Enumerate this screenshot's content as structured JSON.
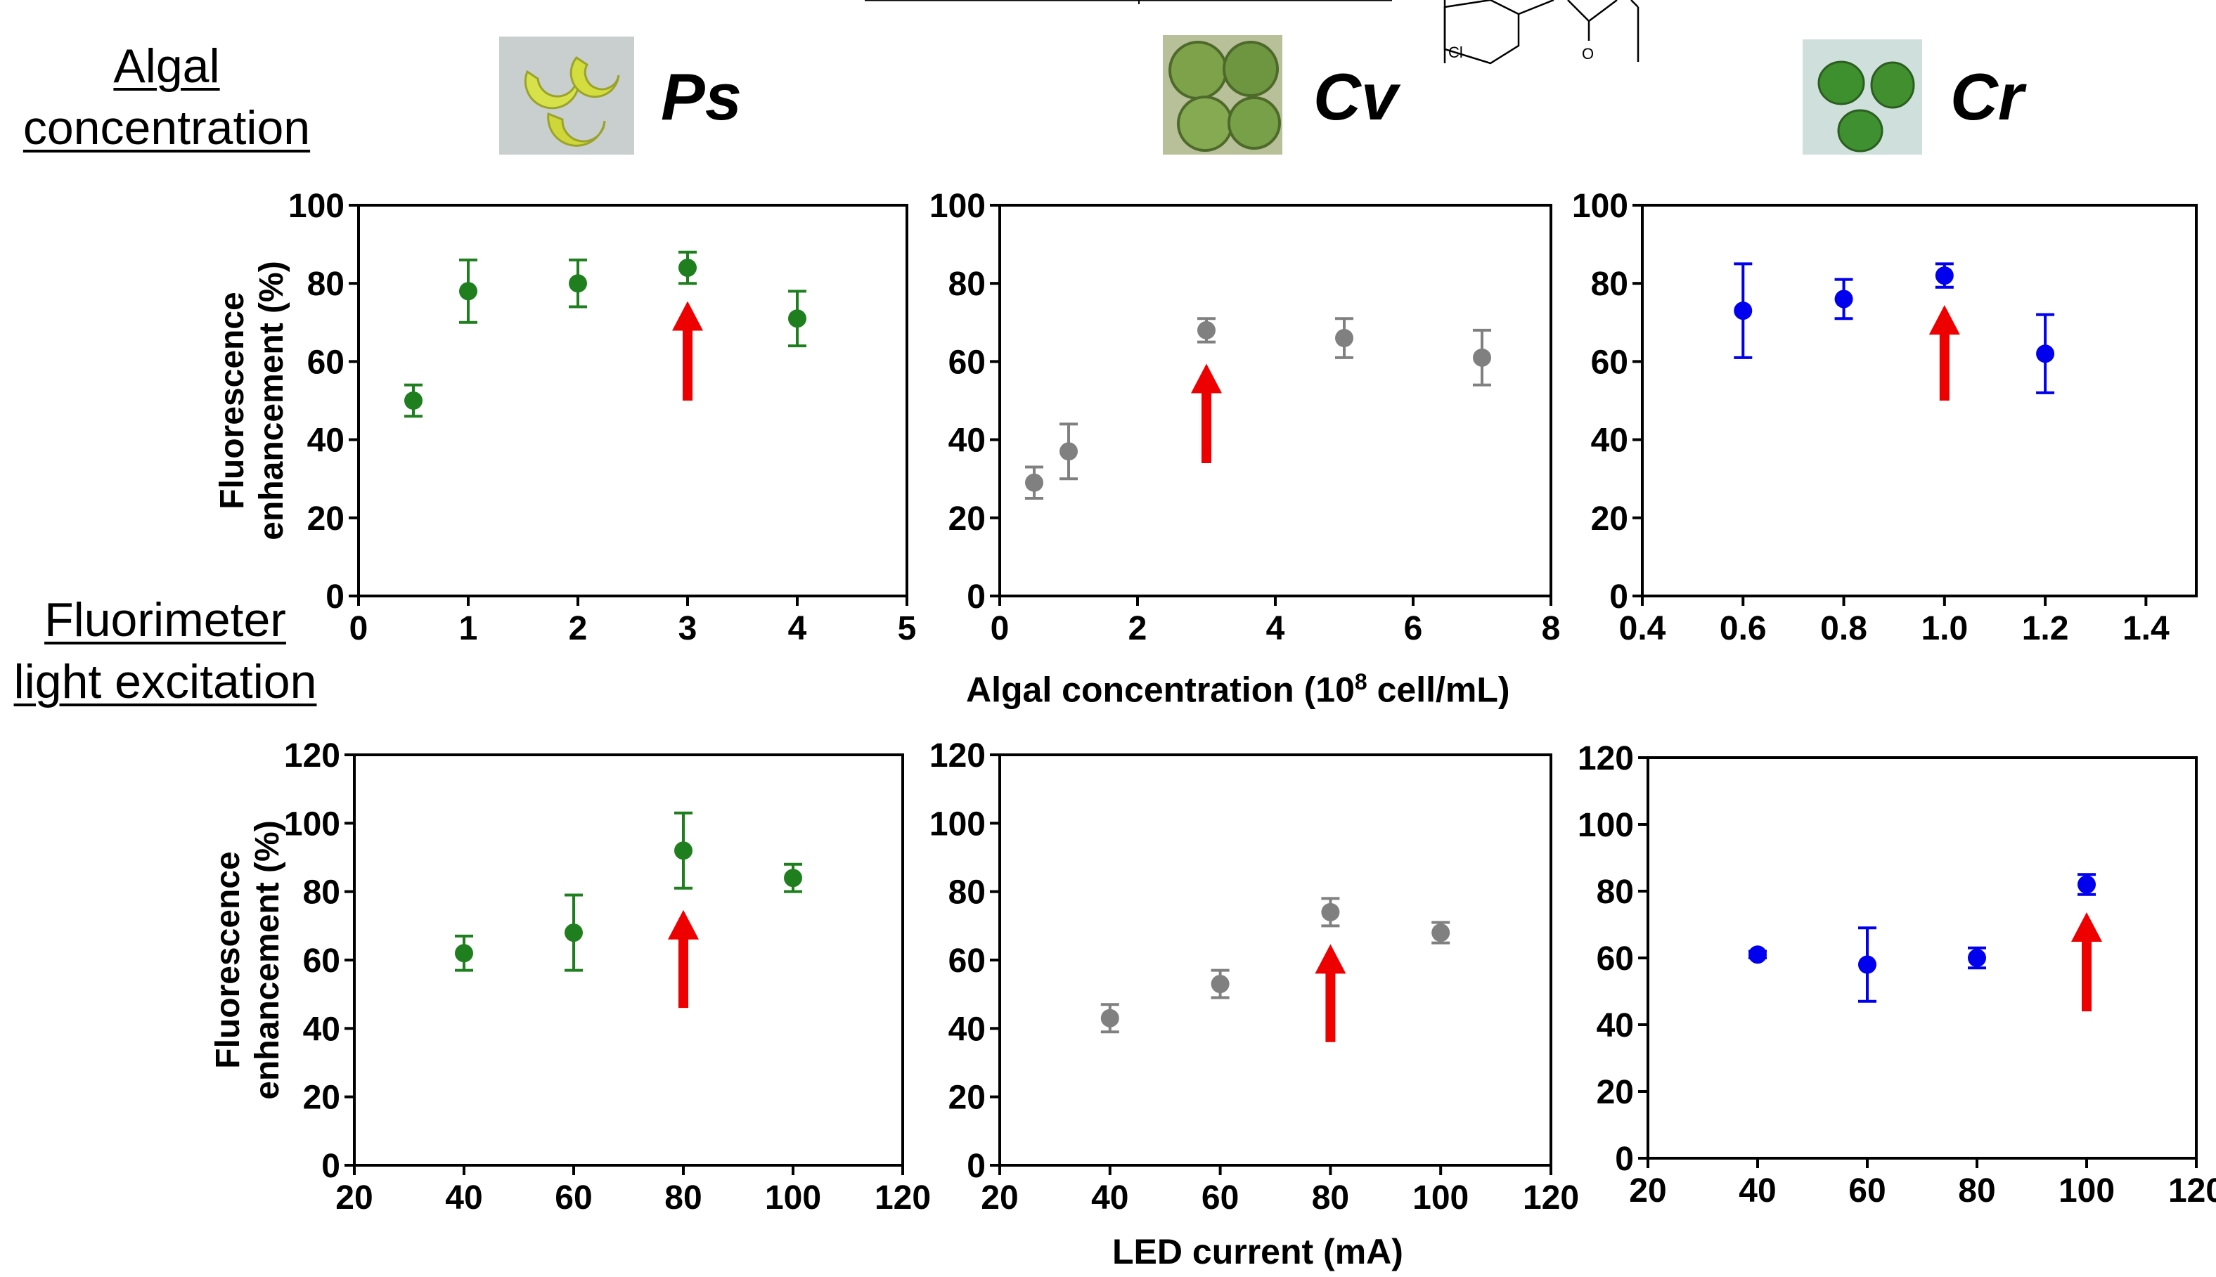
{
  "row_labels": {
    "algal_line1": "Algal",
    "algal_line2": "concentration",
    "fluor_line1": "Fluorimeter",
    "fluor_line2": "light excitation"
  },
  "species": [
    {
      "name": "Ps",
      "icon": "crescent-algae-cells-photo"
    },
    {
      "name": "Cv",
      "icon": "spherical-algae-cells-photo"
    },
    {
      "name": "Cr",
      "icon": "oval-algae-cells-photo"
    }
  ],
  "colors": {
    "Ps": "#1f7f1f",
    "Cv": "#808080",
    "Cr": "#0000ee",
    "arrow": "#ee0000"
  },
  "shared_xlabels": {
    "top": "Algal concentration (10",
    "top_sup": "8",
    "top_end": " cell/mL)",
    "bottom": "LED current (mA)"
  },
  "ylabel_line1": "Fluorescence",
  "ylabel_line2": "enhancement (%)",
  "chart_data": [
    {
      "type": "scatter",
      "name": "Ps-algal-concentration",
      "xlim": [
        0,
        5
      ],
      "xticks": [
        "0",
        "1",
        "2",
        "3",
        "4",
        "5"
      ],
      "ylim": [
        0,
        100
      ],
      "yticks": [
        "0",
        "20",
        "40",
        "60",
        "80",
        "100"
      ],
      "ylabel": "Fluorescence enhancement (%)",
      "points": [
        {
          "x": 0.5,
          "y": 50,
          "err": 4
        },
        {
          "x": 1,
          "y": 78,
          "err": 8
        },
        {
          "x": 2,
          "y": 80,
          "err": 6
        },
        {
          "x": 3,
          "y": 84,
          "err": 4
        },
        {
          "x": 4,
          "y": 71,
          "err": 7
        }
      ],
      "color": "#1f7f1f",
      "arrow": {
        "x": 3,
        "y_from": 50,
        "y_to": 74
      }
    },
    {
      "type": "scatter",
      "name": "Cv-algal-concentration",
      "xlim": [
        0,
        8
      ],
      "xticks": [
        "0",
        "2",
        "4",
        "6",
        "8"
      ],
      "ylim": [
        0,
        100
      ],
      "yticks": [
        "0",
        "20",
        "40",
        "60",
        "80",
        "100"
      ],
      "ylabel": "",
      "points": [
        {
          "x": 0.5,
          "y": 29,
          "err": 4
        },
        {
          "x": 1,
          "y": 37,
          "err": 7
        },
        {
          "x": 3,
          "y": 68,
          "err": 3
        },
        {
          "x": 5,
          "y": 66,
          "err": 5
        },
        {
          "x": 7,
          "y": 61,
          "err": 7
        }
      ],
      "color": "#808080",
      "arrow": {
        "x": 3,
        "y_from": 34,
        "y_to": 58
      }
    },
    {
      "type": "scatter",
      "name": "Cr-algal-concentration",
      "xlim": [
        0.4,
        1.5
      ],
      "xticks": [
        "0.4",
        "0.6",
        "0.8",
        "1.0",
        "1.2",
        "1.4"
      ],
      "ylim": [
        0,
        100
      ],
      "yticks": [
        "0",
        "20",
        "40",
        "60",
        "80",
        "100"
      ],
      "ylabel": "",
      "points": [
        {
          "x": 0.6,
          "y": 73,
          "err": 12
        },
        {
          "x": 0.8,
          "y": 76,
          "err": 5
        },
        {
          "x": 1.0,
          "y": 82,
          "err": 3
        },
        {
          "x": 1.2,
          "y": 62,
          "err": 10
        }
      ],
      "color": "#0000ee",
      "arrow": {
        "x": 1.0,
        "y_from": 50,
        "y_to": 73
      }
    },
    {
      "type": "scatter",
      "name": "Ps-led-current",
      "xlim": [
        20,
        120
      ],
      "xticks": [
        "20",
        "40",
        "60",
        "80",
        "100",
        "120"
      ],
      "ylim": [
        0,
        120
      ],
      "yticks": [
        "0",
        "20",
        "40",
        "60",
        "80",
        "100",
        "120"
      ],
      "ylabel": "Fluorescence enhancement (%)",
      "points": [
        {
          "x": 40,
          "y": 62,
          "err": 5
        },
        {
          "x": 60,
          "y": 68,
          "err": 11
        },
        {
          "x": 80,
          "y": 92,
          "err": 11
        },
        {
          "x": 100,
          "y": 84,
          "err": 4
        }
      ],
      "color": "#1f7f1f",
      "arrow": {
        "x": 80,
        "y_from": 46,
        "y_to": 73
      }
    },
    {
      "type": "scatter",
      "name": "Cv-led-current",
      "xlim": [
        20,
        120
      ],
      "xticks": [
        "20",
        "40",
        "60",
        "80",
        "100",
        "120"
      ],
      "ylim": [
        0,
        120
      ],
      "yticks": [
        "0",
        "20",
        "40",
        "60",
        "80",
        "100",
        "120"
      ],
      "ylabel": "",
      "points": [
        {
          "x": 40,
          "y": 43,
          "err": 4
        },
        {
          "x": 60,
          "y": 53,
          "err": 4
        },
        {
          "x": 80,
          "y": 74,
          "err": 4
        },
        {
          "x": 100,
          "y": 68,
          "err": 3
        }
      ],
      "color": "#808080",
      "arrow": {
        "x": 80,
        "y_from": 36,
        "y_to": 63
      }
    },
    {
      "type": "scatter",
      "name": "Cr-led-current",
      "xlim": [
        20,
        120
      ],
      "xticks": [
        "20",
        "40",
        "60",
        "80",
        "100",
        "120"
      ],
      "ylim": [
        0,
        120
      ],
      "yticks": [
        "0",
        "20",
        "40",
        "60",
        "80",
        "100",
        "120"
      ],
      "ylabel": "",
      "points": [
        {
          "x": 40,
          "y": 61,
          "err": 1
        },
        {
          "x": 60,
          "y": 58,
          "err": 11
        },
        {
          "x": 80,
          "y": 60,
          "err": 3
        },
        {
          "x": 100,
          "y": 82,
          "err": 3
        }
      ],
      "color": "#0000ee",
      "arrow": {
        "x": 100,
        "y_from": 44,
        "y_to": 72
      }
    }
  ]
}
